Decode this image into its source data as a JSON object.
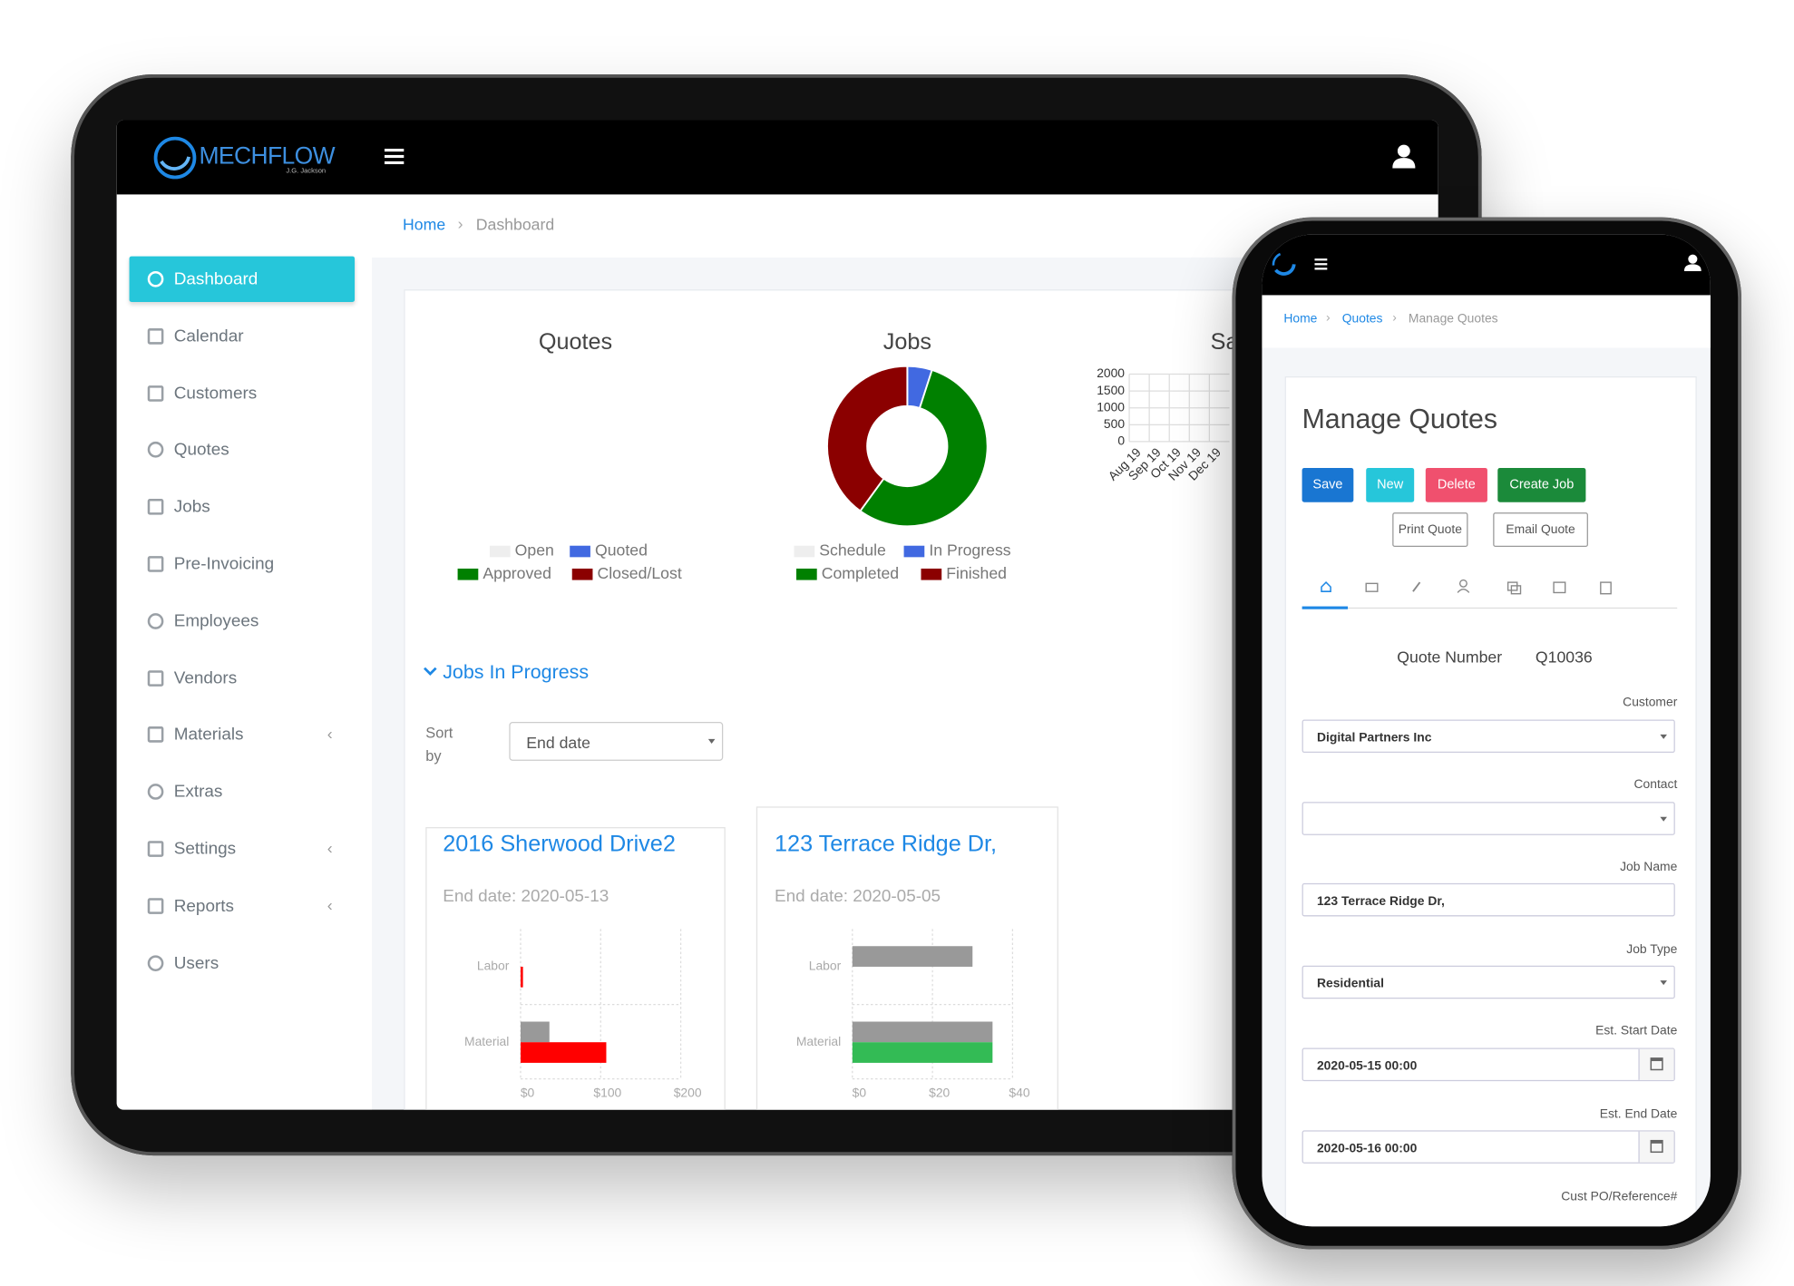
{
  "tablet": {
    "brand": {
      "name": "MECHFLOW",
      "tagline": "J.G. Jackson"
    },
    "sidebar": [
      {
        "label": "Dashboard"
      },
      {
        "label": "Calendar"
      },
      {
        "label": "Customers"
      },
      {
        "label": "Quotes"
      },
      {
        "label": "Jobs"
      },
      {
        "label": "Pre-Invoicing"
      },
      {
        "label": "Employees"
      },
      {
        "label": "Vendors"
      },
      {
        "label": "Materials",
        "submenu": true
      },
      {
        "label": "Extras"
      },
      {
        "label": "Settings",
        "submenu": true
      },
      {
        "label": "Reports",
        "submenu": true
      },
      {
        "label": "Users"
      }
    ],
    "breadcrumb": [
      "Home",
      "Dashboard"
    ],
    "jobs_in_progress": {
      "title": "Jobs In Progress",
      "sort_label": "Sort by",
      "sort_value": "End date",
      "cards": [
        {
          "title": "2016 Sherwood Drive2",
          "end_date": "End date: 2020-05-13"
        },
        {
          "title": "123 Terrace Ridge Dr,",
          "end_date": "End date: 2020-05-05"
        }
      ]
    }
  },
  "chart_data": [
    {
      "type": "pie",
      "title": "Quotes",
      "categories": [
        "Open",
        "Quoted",
        "Approved",
        "Closed/Lost"
      ],
      "colors": [
        "#eeeeee",
        "#4169e1",
        "#008000",
        "#8b0000"
      ]
    },
    {
      "type": "pie",
      "title": "Jobs",
      "categories": [
        "Schedule",
        "In Progress",
        "Completed",
        "Finished"
      ],
      "colors": [
        "#eeeeee",
        "#4169e1",
        "#008000",
        "#8b0000"
      ],
      "values": [
        0,
        5,
        55,
        40
      ]
    },
    {
      "type": "line",
      "title": "Sales",
      "categories": [
        "Aug 19",
        "Sep 19",
        "Oct 19",
        "Nov 19",
        "Dec 19"
      ],
      "ylim": [
        0,
        2000
      ],
      "yticks": [
        0,
        500,
        1000,
        1500,
        2000
      ],
      "grid": true
    },
    {
      "type": "bar",
      "orientation": "horizontal",
      "categories": [
        "Labor",
        "Material"
      ],
      "series": [
        {
          "color": "#999999",
          "values": [
            0,
            36
          ]
        },
        {
          "color": "#ff0000",
          "values": [
            3,
            107
          ]
        }
      ],
      "xlim": [
        0,
        200
      ],
      "xticks": [
        {
          "value": 0,
          "label": "$0"
        },
        {
          "value": 100,
          "label": "$100"
        },
        {
          "value": 200,
          "label": "$200"
        }
      ],
      "grid": true
    },
    {
      "type": "bar",
      "orientation": "horizontal",
      "categories": [
        "Labor",
        "Material"
      ],
      "series": [
        {
          "color": "#999999",
          "values": [
            30,
            35
          ]
        },
        {
          "color": "#33bb55",
          "values": [
            0,
            35
          ]
        }
      ],
      "xlim": [
        0,
        40
      ],
      "xticks": [
        {
          "value": 0,
          "label": "$0"
        },
        {
          "value": 20,
          "label": "$20"
        },
        {
          "value": 40,
          "label": "$40"
        }
      ],
      "grid": true
    }
  ],
  "phone": {
    "breadcrumb": [
      "Home",
      "Quotes",
      "Manage Quotes"
    ],
    "title": "Manage Quotes",
    "buttons": [
      "Save",
      "New",
      "Delete",
      "Create Job"
    ],
    "secondary_buttons": [
      "Print Quote",
      "Email Quote"
    ],
    "quote_number": {
      "label": "Quote Number",
      "value": "Q10036"
    },
    "customer": {
      "label": "Customer",
      "value": "Digital Partners Inc"
    },
    "contact": {
      "label": "Contact"
    },
    "job_name": {
      "label": "Job Name",
      "value": "123 Terrace Ridge Dr,"
    },
    "job_type": {
      "label": "Job Type",
      "value": "Residential"
    },
    "start_date": {
      "label": "Est. Start Date",
      "value": "2020-05-15 00:00"
    },
    "end_date": {
      "label": "Est. End Date",
      "value": "2020-05-16 00:00"
    },
    "cust_po": {
      "label": "Cust PO/Reference#"
    }
  }
}
